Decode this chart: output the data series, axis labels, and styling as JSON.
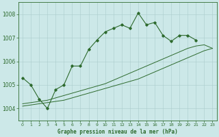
{
  "title": "Graphe pression niveau de la mer (hPa)",
  "bg_color": "#cce8e8",
  "line_color": "#2d6a2d",
  "marker_color": "#2d6a2d",
  "xlim": [
    -0.5,
    23.5
  ],
  "ylim": [
    1003.5,
    1008.5
  ],
  "yticks": [
    1004,
    1005,
    1006,
    1007,
    1008
  ],
  "xticks": [
    0,
    1,
    2,
    3,
    4,
    5,
    6,
    7,
    8,
    9,
    10,
    11,
    12,
    13,
    14,
    15,
    16,
    17,
    18,
    19,
    20,
    21,
    22,
    23
  ],
  "series1_x": [
    0,
    1,
    2,
    3,
    4,
    5,
    6,
    7,
    8,
    9,
    10,
    11,
    12,
    13,
    14,
    15,
    16,
    17,
    18,
    19,
    20,
    21
  ],
  "series1_y": [
    1005.3,
    1005.0,
    1004.4,
    1004.0,
    1004.8,
    1005.0,
    1005.8,
    1005.8,
    1006.5,
    1006.9,
    1007.25,
    1007.4,
    1007.55,
    1007.4,
    1008.05,
    1007.55,
    1007.65,
    1007.1,
    1006.85,
    1007.1,
    1007.1,
    1006.9
  ],
  "series2_x": [
    0,
    1,
    2,
    3,
    4,
    5,
    6,
    7,
    8,
    9,
    10,
    11,
    12,
    13,
    14,
    15,
    16,
    17,
    18,
    19,
    20,
    21,
    22,
    23
  ],
  "series2_y": [
    1004.1,
    1004.15,
    1004.2,
    1004.25,
    1004.3,
    1004.35,
    1004.45,
    1004.55,
    1004.65,
    1004.75,
    1004.85,
    1004.95,
    1005.05,
    1005.15,
    1005.25,
    1005.4,
    1005.55,
    1005.7,
    1005.85,
    1006.0,
    1006.15,
    1006.3,
    1006.45,
    1006.55
  ],
  "series3_x": [
    0,
    1,
    2,
    3,
    4,
    5,
    6,
    7,
    8,
    9,
    10,
    11,
    12,
    13,
    14,
    15,
    16,
    17,
    18,
    19,
    20,
    21,
    22,
    23
  ],
  "series3_y": [
    1004.2,
    1004.25,
    1004.3,
    1004.35,
    1004.45,
    1004.55,
    1004.65,
    1004.75,
    1004.85,
    1004.95,
    1005.05,
    1005.2,
    1005.35,
    1005.5,
    1005.65,
    1005.8,
    1005.95,
    1006.1,
    1006.25,
    1006.4,
    1006.55,
    1006.65,
    1006.7,
    1006.55
  ]
}
